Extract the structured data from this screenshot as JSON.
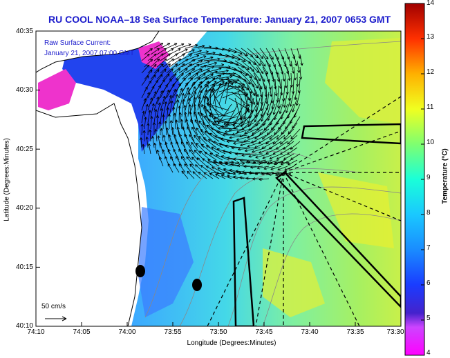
{
  "title": "RU COOL  NOAA–18  Sea Surface Temperature:  January 21, 2007 0653 GMT",
  "annotation": {
    "line1": "Raw Surface Current:",
    "line2": "January 21, 2007 07:00 GMT"
  },
  "scale_label": "50 cm/s",
  "axes": {
    "xlabel": "Longitude (Degrees:Minutes)",
    "ylabel": "Latitude (Degrees:Minutes)",
    "xticks": [
      "74:10",
      "74:05",
      "74:00",
      "73:55",
      "73:50",
      "73:45",
      "73:40",
      "73:35",
      "73:30"
    ],
    "yticks": [
      "40:35",
      "40:30",
      "40:25",
      "40:20",
      "40:15",
      "40:10"
    ]
  },
  "colorbar": {
    "label": "Temperature (°C)",
    "ticks": [
      "14",
      "13",
      "12",
      "11",
      "10",
      "9",
      "8",
      "7",
      "6",
      "5",
      "4"
    ],
    "min": 4,
    "max": 14
  },
  "colors": {
    "title": "#1c1ccc",
    "land": "#ffffff",
    "coast": "#000000"
  }
}
